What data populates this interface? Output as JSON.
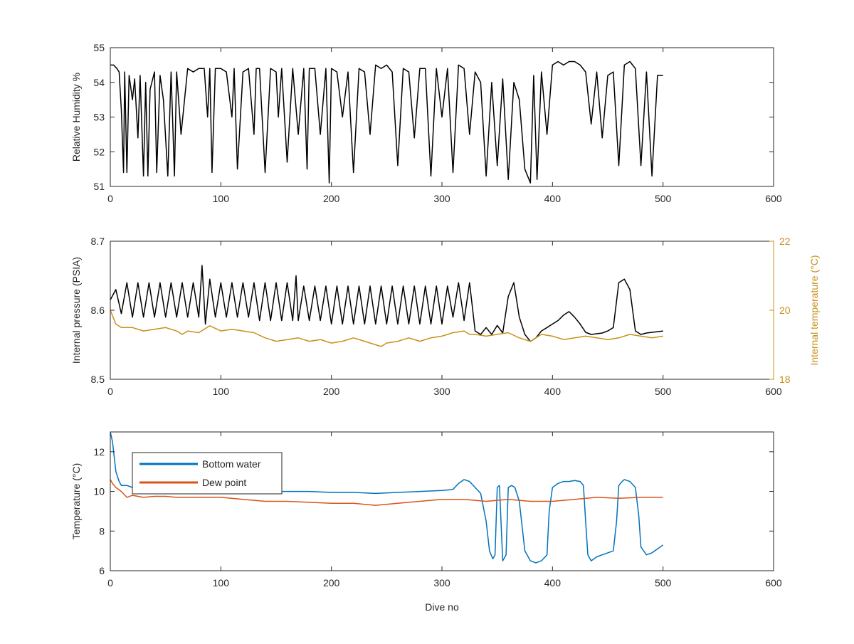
{
  "chart_data": [
    {
      "type": "line",
      "id": "humidity",
      "xlabel": "",
      "ylabel": "Relative Humidity %",
      "xlim": [
        0,
        600
      ],
      "ylim": [
        51,
        55
      ],
      "xticks": [
        0,
        100,
        200,
        300,
        400,
        500,
        600
      ],
      "yticks": [
        51,
        52,
        53,
        54,
        55
      ],
      "grid": false,
      "series": [
        {
          "color": "#000000",
          "x": [
            0,
            3,
            6,
            8,
            10,
            12,
            13,
            15,
            17,
            20,
            22,
            25,
            27,
            30,
            32,
            34,
            36,
            40,
            42,
            45,
            48,
            52,
            55,
            58,
            60,
            64,
            70,
            75,
            80,
            85,
            88,
            90,
            92,
            95,
            100,
            105,
            110,
            112,
            115,
            120,
            125,
            130,
            132,
            135,
            140,
            145,
            150,
            152,
            155,
            160,
            165,
            170,
            175,
            178,
            180,
            185,
            190,
            195,
            198,
            200,
            205,
            210,
            215,
            220,
            225,
            230,
            235,
            240,
            245,
            250,
            255,
            260,
            265,
            270,
            275,
            280,
            285,
            290,
            295,
            300,
            305,
            310,
            315,
            320,
            325,
            330,
            335,
            340,
            345,
            350,
            355,
            360,
            365,
            370,
            375,
            380,
            383,
            386,
            390,
            395,
            400,
            405,
            410,
            415,
            420,
            425,
            430,
            435,
            440,
            445,
            450,
            455,
            460,
            465,
            470,
            475,
            480,
            485,
            490,
            495,
            500
          ],
          "y": [
            54.5,
            54.5,
            54.4,
            54.3,
            53.2,
            51.4,
            54.3,
            51.4,
            54.2,
            53.5,
            54.1,
            52.4,
            54.2,
            51.3,
            54.0,
            51.3,
            53.8,
            54.3,
            51.4,
            54.2,
            53.5,
            51.3,
            54.3,
            51.3,
            54.3,
            52.5,
            54.4,
            54.3,
            54.4,
            54.4,
            53.0,
            54.4,
            51.4,
            54.4,
            54.4,
            54.3,
            53.0,
            54.4,
            51.5,
            54.3,
            54.4,
            52.5,
            54.4,
            54.4,
            51.4,
            54.4,
            54.3,
            53.0,
            54.4,
            51.7,
            54.4,
            52.5,
            54.4,
            51.5,
            54.4,
            54.4,
            52.5,
            54.4,
            51.1,
            54.4,
            54.3,
            53.0,
            54.3,
            51.4,
            54.4,
            54.3,
            52.5,
            54.5,
            54.4,
            54.5,
            54.3,
            51.6,
            54.4,
            54.3,
            52.4,
            54.4,
            54.4,
            51.3,
            54.4,
            53.0,
            54.4,
            51.4,
            54.5,
            54.4,
            52.5,
            54.3,
            54.0,
            51.3,
            54.0,
            51.6,
            54.1,
            51.2,
            54.0,
            53.5,
            51.5,
            51.1,
            54.2,
            51.2,
            54.3,
            52.5,
            54.5,
            54.6,
            54.5,
            54.6,
            54.6,
            54.5,
            54.3,
            52.8,
            54.3,
            52.4,
            54.2,
            54.3,
            51.6,
            54.5,
            54.6,
            54.4,
            51.6,
            54.3,
            51.3,
            54.2,
            54.2
          ]
        }
      ]
    },
    {
      "type": "line",
      "id": "pressure",
      "xlabel": "",
      "ylabel": "Internal pressure (PSIA)",
      "y2label": "Internal temperature (°C)",
      "xlim": [
        0,
        600
      ],
      "ylim": [
        8.5,
        8.7
      ],
      "y2lim": [
        18,
        22
      ],
      "xticks": [
        0,
        100,
        200,
        300,
        400,
        500,
        600
      ],
      "yticks": [
        8.5,
        8.6,
        8.7
      ],
      "y2ticks": [
        18,
        20,
        22
      ],
      "grid": false,
      "series": [
        {
          "color": "#000000",
          "axis": "left",
          "x": [
            0,
            5,
            10,
            15,
            20,
            25,
            30,
            35,
            40,
            45,
            50,
            55,
            60,
            65,
            70,
            75,
            80,
            83,
            86,
            90,
            95,
            100,
            105,
            110,
            115,
            120,
            125,
            130,
            135,
            140,
            145,
            150,
            155,
            160,
            165,
            168,
            170,
            175,
            180,
            185,
            190,
            195,
            200,
            205,
            210,
            215,
            220,
            225,
            230,
            235,
            240,
            245,
            250,
            255,
            260,
            265,
            270,
            275,
            280,
            285,
            290,
            295,
            300,
            305,
            310,
            315,
            320,
            325,
            330,
            335,
            340,
            345,
            350,
            355,
            360,
            365,
            370,
            375,
            380,
            385,
            390,
            395,
            400,
            405,
            410,
            415,
            420,
            425,
            430,
            435,
            440,
            445,
            450,
            455,
            460,
            465,
            470,
            475,
            480,
            485,
            490,
            495,
            500
          ],
          "y": [
            8.615,
            8.63,
            8.595,
            8.64,
            8.59,
            8.64,
            8.59,
            8.64,
            8.59,
            8.64,
            8.59,
            8.64,
            8.59,
            8.64,
            8.59,
            8.64,
            8.59,
            8.665,
            8.58,
            8.645,
            8.59,
            8.64,
            8.59,
            8.64,
            8.59,
            8.64,
            8.59,
            8.64,
            8.585,
            8.64,
            8.585,
            8.64,
            8.585,
            8.64,
            8.585,
            8.65,
            8.585,
            8.635,
            8.585,
            8.635,
            8.585,
            8.635,
            8.58,
            8.635,
            8.58,
            8.635,
            8.58,
            8.635,
            8.58,
            8.635,
            8.58,
            8.635,
            8.58,
            8.635,
            8.58,
            8.635,
            8.58,
            8.635,
            8.58,
            8.635,
            8.58,
            8.635,
            8.58,
            8.635,
            8.59,
            8.64,
            8.585,
            8.64,
            8.57,
            8.565,
            8.575,
            8.565,
            8.578,
            8.567,
            8.62,
            8.64,
            8.59,
            8.565,
            8.555,
            8.56,
            8.57,
            8.575,
            8.58,
            8.585,
            8.593,
            8.598,
            8.59,
            8.58,
            8.568,
            8.565,
            8.566,
            8.567,
            8.57,
            8.575,
            8.64,
            8.645,
            8.63,
            8.57,
            8.565,
            8.567,
            8.568,
            8.569,
            8.57
          ]
        },
        {
          "color": "#c8901a",
          "axis": "right",
          "x": [
            0,
            5,
            10,
            20,
            30,
            40,
            50,
            60,
            65,
            70,
            80,
            90,
            100,
            110,
            120,
            130,
            140,
            150,
            160,
            170,
            180,
            190,
            200,
            210,
            220,
            230,
            240,
            245,
            250,
            260,
            270,
            280,
            290,
            300,
            310,
            320,
            325,
            330,
            340,
            350,
            360,
            370,
            380,
            390,
            400,
            410,
            420,
            430,
            440,
            450,
            460,
            470,
            480,
            490,
            500
          ],
          "y": [
            20.0,
            19.6,
            19.5,
            19.5,
            19.4,
            19.45,
            19.5,
            19.4,
            19.3,
            19.4,
            19.35,
            19.55,
            19.4,
            19.45,
            19.4,
            19.35,
            19.2,
            19.1,
            19.15,
            19.2,
            19.1,
            19.15,
            19.05,
            19.1,
            19.2,
            19.1,
            19.0,
            18.95,
            19.05,
            19.1,
            19.2,
            19.1,
            19.2,
            19.25,
            19.35,
            19.4,
            19.3,
            19.3,
            19.25,
            19.3,
            19.35,
            19.2,
            19.1,
            19.3,
            19.25,
            19.15,
            19.2,
            19.25,
            19.2,
            19.15,
            19.2,
            19.3,
            19.25,
            19.2,
            19.25
          ]
        }
      ]
    },
    {
      "type": "line",
      "id": "temperature",
      "xlabel": "Dive no",
      "ylabel": "Temperature (°C)",
      "xlim": [
        0,
        600
      ],
      "ylim": [
        6,
        13
      ],
      "xticks": [
        0,
        100,
        200,
        300,
        400,
        500,
        600
      ],
      "yticks": [
        6,
        8,
        10,
        12
      ],
      "grid": false,
      "legend": "top-left",
      "series": [
        {
          "name": "Bottom water",
          "color": "#0072bd",
          "x": [
            0,
            2,
            5,
            8,
            10,
            15,
            20,
            30,
            50,
            80,
            100,
            130,
            150,
            180,
            200,
            220,
            240,
            260,
            280,
            300,
            310,
            315,
            320,
            325,
            330,
            335,
            340,
            343,
            346,
            348,
            350,
            352,
            355,
            358,
            360,
            363,
            366,
            370,
            375,
            380,
            385,
            390,
            395,
            397,
            400,
            405,
            410,
            415,
            420,
            425,
            428,
            430,
            432,
            435,
            440,
            445,
            450,
            455,
            458,
            460,
            463,
            465,
            470,
            475,
            478,
            480,
            485,
            490,
            495,
            500
          ],
          "y": [
            13.0,
            12.5,
            11.0,
            10.5,
            10.3,
            10.3,
            10.2,
            10.2,
            10.1,
            10.1,
            10.0,
            10.0,
            10.0,
            10.0,
            9.95,
            9.95,
            9.9,
            9.95,
            10.0,
            10.05,
            10.1,
            10.4,
            10.6,
            10.5,
            10.2,
            9.9,
            8.5,
            7.0,
            6.6,
            6.8,
            10.2,
            10.3,
            6.5,
            6.8,
            10.2,
            10.3,
            10.2,
            9.5,
            7.0,
            6.5,
            6.4,
            6.5,
            6.8,
            9.0,
            10.2,
            10.4,
            10.5,
            10.5,
            10.55,
            10.5,
            10.3,
            8.5,
            6.8,
            6.5,
            6.7,
            6.8,
            6.9,
            7.0,
            8.5,
            10.3,
            10.5,
            10.6,
            10.5,
            10.2,
            8.8,
            7.2,
            6.8,
            6.9,
            7.1,
            7.3
          ]
        },
        {
          "name": "Dew point",
          "color": "#d95319",
          "x": [
            0,
            2,
            5,
            10,
            15,
            20,
            30,
            40,
            50,
            60,
            80,
            100,
            120,
            140,
            160,
            180,
            200,
            220,
            240,
            260,
            280,
            300,
            320,
            340,
            360,
            380,
            400,
            420,
            440,
            460,
            480,
            500
          ],
          "y": [
            10.6,
            10.4,
            10.2,
            10.0,
            9.7,
            9.8,
            9.7,
            9.75,
            9.75,
            9.7,
            9.7,
            9.7,
            9.6,
            9.5,
            9.5,
            9.45,
            9.4,
            9.4,
            9.3,
            9.4,
            9.5,
            9.6,
            9.6,
            9.5,
            9.6,
            9.5,
            9.5,
            9.6,
            9.7,
            9.65,
            9.7,
            9.7
          ]
        }
      ]
    }
  ]
}
